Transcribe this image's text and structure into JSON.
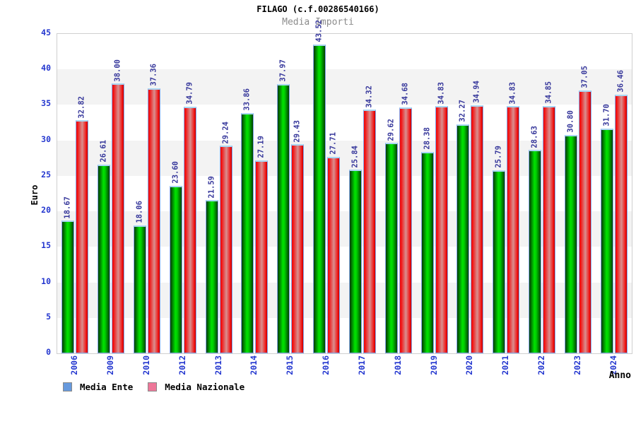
{
  "title": "FILAGO (c.f.00286540166)",
  "subtitle": "Media Importi",
  "ylabel": "Euro",
  "xlabel": "Anno",
  "legend": [
    {
      "label": "Media Ente",
      "swatch": "#6699dd"
    },
    {
      "label": "Media Nazionale",
      "swatch": "#ee7799"
    }
  ],
  "colors": {
    "axis_tick_text": "#2437cf",
    "value_label_text": "#36379b",
    "subtitle_text": "#8c8c8c",
    "band_gray": "#f3f3f3",
    "plot_border": "#cfcfcf",
    "bar_border": "#86a7ea",
    "bar_top_cap": "#a9d7f3",
    "green_edge": "#023a02",
    "green_bright": "#00e200",
    "red_edge": "#f20d0d",
    "red_light": "#d98f8f"
  },
  "chart_data": {
    "type": "bar",
    "title": "FILAGO (c.f.00286540166)",
    "subtitle": "Media Importi",
    "xlabel": "Anno",
    "ylabel": "Euro",
    "ylim": [
      0,
      45
    ],
    "yticks": [
      0,
      5,
      10,
      15,
      20,
      25,
      30,
      35,
      40,
      45
    ],
    "grid": "alternating horizontal bands every 5 units",
    "legend_position": "bottom-left",
    "categories": [
      "2006",
      "2009",
      "2010",
      "2012",
      "2013",
      "2014",
      "2015",
      "2016",
      "2017",
      "2018",
      "2019",
      "2020",
      "2021",
      "2022",
      "2023",
      "2024"
    ],
    "series": [
      {
        "name": "Media Ente",
        "color": "green",
        "values": [
          18.67,
          26.61,
          18.06,
          23.6,
          21.59,
          33.86,
          37.97,
          43.52,
          25.84,
          29.62,
          28.38,
          32.27,
          25.79,
          28.63,
          30.8,
          31.7
        ],
        "labels": [
          "18.67",
          "26.61",
          "18.06",
          "23.60",
          "21.59",
          "33.86",
          "37.97",
          "43.52",
          "25.84",
          "29.62",
          "28.38",
          "32.27",
          "25.79",
          "28.63",
          "30.80",
          "31.70"
        ]
      },
      {
        "name": "Media Nazionale",
        "color": "red",
        "values": [
          32.82,
          38.0,
          37.36,
          34.79,
          29.24,
          27.19,
          29.43,
          27.71,
          34.32,
          34.68,
          34.83,
          34.94,
          34.83,
          34.85,
          37.05,
          36.46
        ],
        "labels": [
          "32.82",
          "38.00",
          "37.36",
          "34.79",
          "29.24",
          "27.19",
          "29.43",
          "27.71",
          "34.32",
          "34.68",
          "34.83",
          "34.94",
          "34.83",
          "34.85",
          "37.05",
          "36.46"
        ]
      }
    ]
  }
}
